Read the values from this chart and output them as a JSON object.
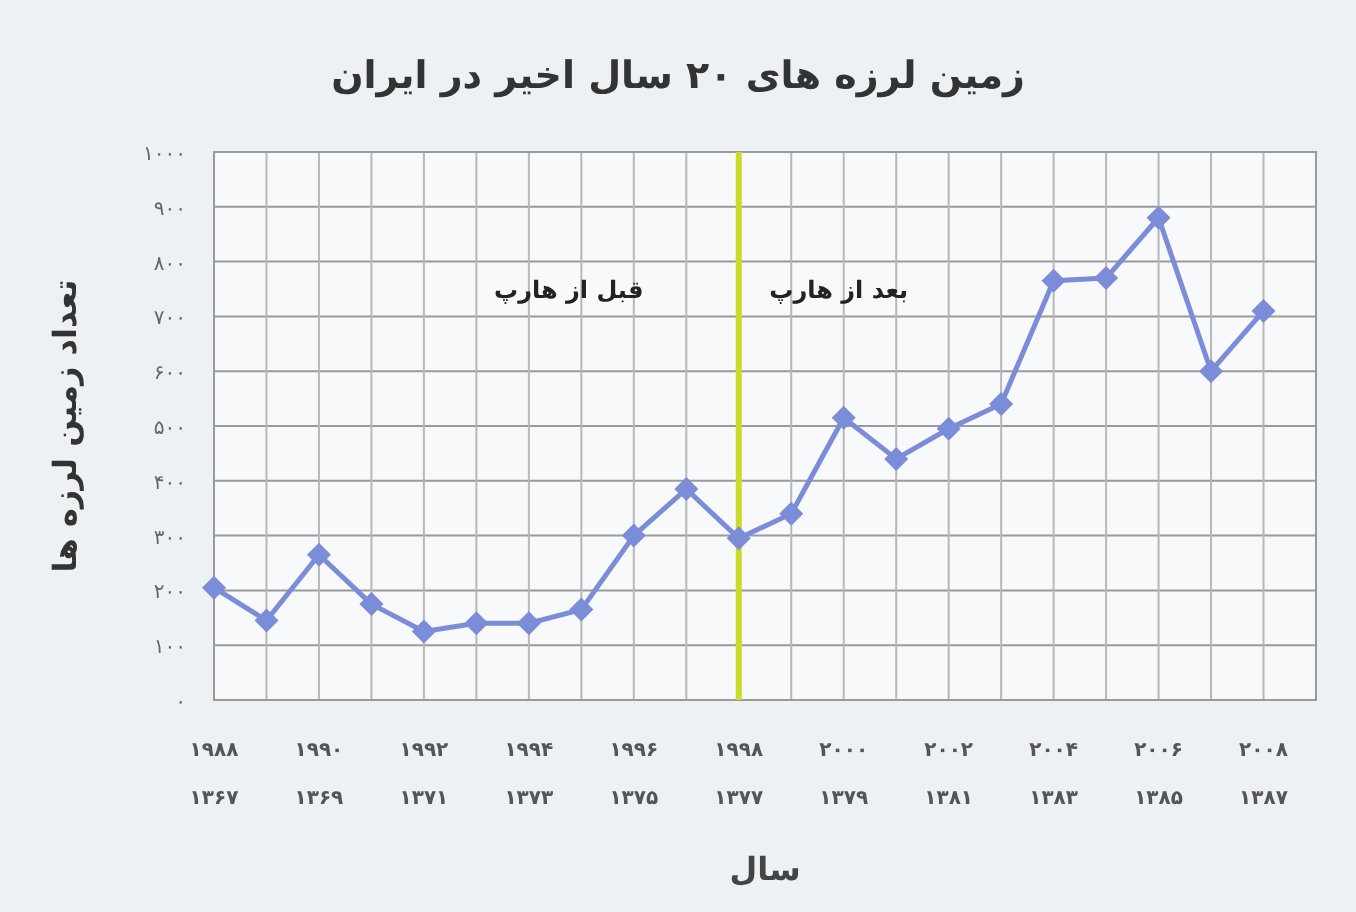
{
  "chart_data": {
    "type": "line",
    "title": "زمین لرزه های ۲۰ سال اخیر در ایران",
    "xlabel": "سال",
    "ylabel": "تعداد زمین لرزه ها",
    "x": [
      1988,
      1989,
      1990,
      1991,
      1992,
      1993,
      1994,
      1995,
      1996,
      1997,
      1998,
      1999,
      2000,
      2001,
      2002,
      2003,
      2004,
      2005,
      2006,
      2007,
      2008
    ],
    "series": [
      {
        "color": "#7b8cd8",
        "values": [
          205,
          145,
          265,
          175,
          125,
          140,
          140,
          165,
          300,
          385,
          295,
          340,
          515,
          440,
          495,
          540,
          765,
          770,
          880,
          600,
          710
        ]
      }
    ],
    "marker": "diamond",
    "grid": true,
    "xlim": [
      1988,
      2009
    ],
    "xticks": [
      {
        "value": 1988,
        "label": "۱۹۸۸"
      },
      {
        "value": 1989,
        "label": null
      },
      {
        "value": 1990,
        "label": "۱۹۹۰"
      },
      {
        "value": 1991,
        "label": null
      },
      {
        "value": 1992,
        "label": "۱۹۹۲"
      },
      {
        "value": 1993,
        "label": null
      },
      {
        "value": 1994,
        "label": "۱۹۹۴"
      },
      {
        "value": 1995,
        "label": null
      },
      {
        "value": 1996,
        "label": "۱۹۹۶"
      },
      {
        "value": 1997,
        "label": null
      },
      {
        "value": 1998,
        "label": "۱۹۹۸"
      },
      {
        "value": 1999,
        "label": null
      },
      {
        "value": 2000,
        "label": "۲۰۰۰"
      },
      {
        "value": 2001,
        "label": null
      },
      {
        "value": 2002,
        "label": "۲۰۰۲"
      },
      {
        "value": 2003,
        "label": null
      },
      {
        "value": 2004,
        "label": "۲۰۰۴"
      },
      {
        "value": 2005,
        "label": null
      },
      {
        "value": 2006,
        "label": "۲۰۰۶"
      },
      {
        "value": 2007,
        "label": null
      },
      {
        "value": 2008,
        "label": "۲۰۰۸"
      },
      {
        "value": 2009,
        "label": null
      }
    ],
    "x2lim": [
      1367,
      1388
    ],
    "x2ticks": [
      {
        "value": 1367,
        "label": "۱۳۶۷"
      },
      {
        "value": 1369,
        "label": "۱۳۶۹"
      },
      {
        "value": 1371,
        "label": "۱۳۷۱"
      },
      {
        "value": 1373,
        "label": "۱۳۷۳"
      },
      {
        "value": 1375,
        "label": "۱۳۷۵"
      },
      {
        "value": 1377,
        "label": "۱۳۷۷"
      },
      {
        "value": 1379,
        "label": "۱۳۷۹"
      },
      {
        "value": 1381,
        "label": "۱۳۸۱"
      },
      {
        "value": 1383,
        "label": "۱۳۸۳"
      },
      {
        "value": 1385,
        "label": "۱۳۸۵"
      },
      {
        "value": 1387,
        "label": "۱۳۸۷"
      }
    ],
    "ylim": [
      0,
      1000
    ],
    "yticks": [
      {
        "value": 0,
        "label": "۰"
      },
      {
        "value": 100,
        "label": "۱۰۰"
      },
      {
        "value": 200,
        "label": "۲۰۰"
      },
      {
        "value": 300,
        "label": "۳۰۰"
      },
      {
        "value": 400,
        "label": "۴۰۰"
      },
      {
        "value": 500,
        "label": "۵۰۰"
      },
      {
        "value": 600,
        "label": "۶۰۰"
      },
      {
        "value": 700,
        "label": "۷۰۰"
      },
      {
        "value": 800,
        "label": "۸۰۰"
      },
      {
        "value": 900,
        "label": "۹۰۰"
      },
      {
        "value": 1000,
        "label": "۱۰۰۰"
      }
    ],
    "ref_lines": [
      {
        "axis": "x",
        "value": 1998,
        "color": "#c9dc2a"
      }
    ],
    "annotations": [
      "قبل از هارپ",
      "بعد از هارپ"
    ]
  }
}
